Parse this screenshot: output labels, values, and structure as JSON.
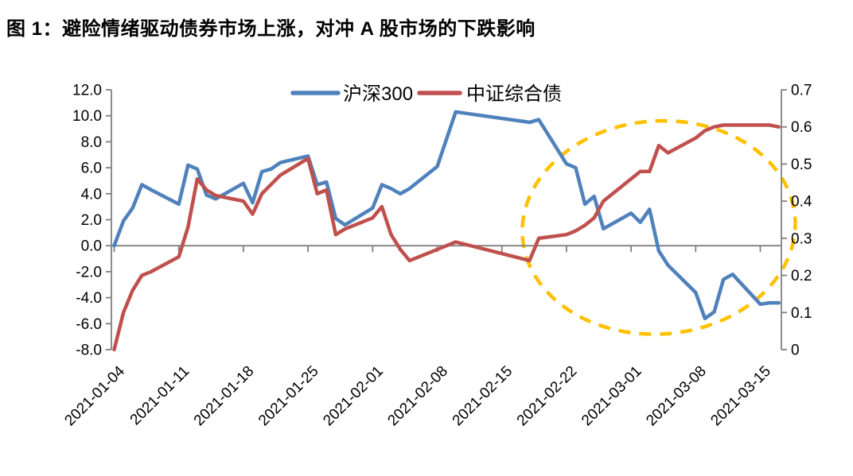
{
  "figure": {
    "title": "图 1：避险情绪驱动债券市场上涨，对冲 A 股市场的下跌影响"
  },
  "chart_data": {
    "type": "line",
    "title": "图 1：避险情绪驱动债券市场上涨，对冲 A 股市场的下跌影响",
    "legend_position": "top",
    "grid": "off",
    "axis_color": "#808080",
    "x_axis": {
      "start": "2021-01-04",
      "end": "2021-03-17",
      "tick_labels": [
        "2021-01-04",
        "2021-01-11",
        "2021-01-18",
        "2021-01-25",
        "2021-02-01",
        "2021-02-08",
        "2021-02-15",
        "2021-02-22",
        "2021-03-01",
        "2021-03-08",
        "2021-03-15"
      ]
    },
    "left_axis": {
      "min": -8,
      "max": 12,
      "tick_labels": [
        "12.0",
        "10.0",
        "8.0",
        "6.0",
        "4.0",
        "2.0",
        "0.0",
        "-2.0",
        "-4.0",
        "-6.0",
        "-8.0"
      ]
    },
    "right_axis": {
      "min": 0,
      "max": 0.7,
      "tick_labels": [
        "0.7",
        "0.6",
        "0.5",
        "0.4",
        "0.3",
        "0.2",
        "0.1",
        "0"
      ]
    },
    "dates": [
      "2021-01-04",
      "2021-01-05",
      "2021-01-06",
      "2021-01-07",
      "2021-01-08",
      "2021-01-11",
      "2021-01-12",
      "2021-01-13",
      "2021-01-14",
      "2021-01-15",
      "2021-01-18",
      "2021-01-19",
      "2021-01-20",
      "2021-01-21",
      "2021-01-22",
      "2021-01-25",
      "2021-01-26",
      "2021-01-27",
      "2021-01-28",
      "2021-01-29",
      "2021-02-01",
      "2021-02-02",
      "2021-02-03",
      "2021-02-04",
      "2021-02-05",
      "2021-02-08",
      "2021-02-09",
      "2021-02-10",
      "2021-02-18",
      "2021-02-19",
      "2021-02-22",
      "2021-02-23",
      "2021-02-24",
      "2021-02-25",
      "2021-02-26",
      "2021-03-01",
      "2021-03-02",
      "2021-03-03",
      "2021-03-04",
      "2021-03-05",
      "2021-03-08",
      "2021-03-09",
      "2021-03-10",
      "2021-03-11",
      "2021-03-12",
      "2021-03-15",
      "2021-03-16",
      "2021-03-17"
    ],
    "series": [
      {
        "name": "沪深300",
        "axis": "left",
        "color": "#4F81BD",
        "values": [
          0.0,
          1.9,
          2.9,
          4.7,
          4.3,
          3.2,
          6.2,
          5.9,
          3.9,
          3.6,
          4.8,
          3.3,
          5.7,
          5.9,
          6.4,
          6.9,
          4.7,
          4.9,
          2.1,
          1.6,
          2.9,
          4.7,
          4.4,
          4.0,
          4.4,
          6.1,
          8.2,
          10.3,
          9.5,
          9.7,
          6.3,
          6.0,
          3.2,
          3.8,
          1.3,
          2.5,
          1.8,
          2.8,
          -0.4,
          -1.5,
          -3.6,
          -5.6,
          -5.1,
          -2.6,
          -2.2,
          -4.5,
          -4.4,
          -4.4
        ]
      },
      {
        "name": "中证综合债",
        "axis": "right",
        "color": "#C0504D",
        "values": [
          0.0,
          0.1,
          0.16,
          0.2,
          0.21,
          0.25,
          0.33,
          0.46,
          0.43,
          0.415,
          0.4,
          0.365,
          0.42,
          0.445,
          0.47,
          0.515,
          0.42,
          0.43,
          0.31,
          0.325,
          0.355,
          0.385,
          0.31,
          0.27,
          0.24,
          0.27,
          0.28,
          0.29,
          0.24,
          0.3,
          0.31,
          0.32,
          0.335,
          0.355,
          0.4,
          0.46,
          0.48,
          0.48,
          0.55,
          0.53,
          0.57,
          0.59,
          0.6,
          0.605,
          0.605,
          0.605,
          0.605,
          0.6
        ]
      }
    ],
    "annotation": {
      "shape": "dashed-ellipse",
      "color": "#FFC000",
      "center_date": "2021-03-04",
      "center_value_left": 1.4,
      "radius_days": 14.8,
      "radius_value_left": 8.2
    }
  }
}
